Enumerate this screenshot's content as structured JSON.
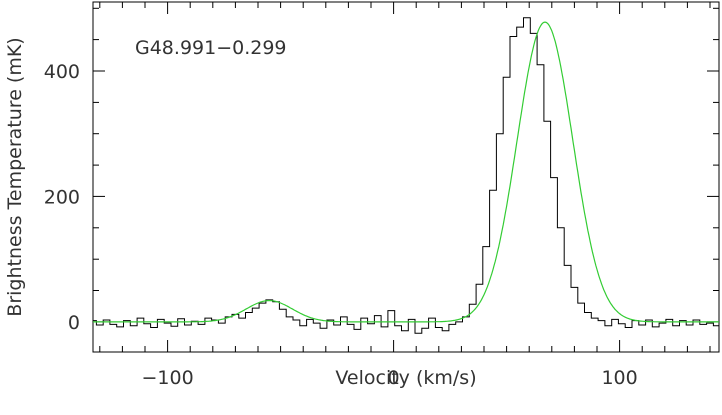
{
  "chart_data": {
    "type": "line",
    "annotation": "G48.991−0.299",
    "xlabel": "Velocity (km/s)",
    "ylabel": "Brightness Temperature (mK)",
    "xlim": [
      -133,
      144
    ],
    "ylim": [
      -48,
      510
    ],
    "x_ticks": [
      -100,
      0,
      100
    ],
    "x_tick_labels": [
      "−100",
      "0",
      "100"
    ],
    "y_ticks": [
      0,
      200,
      400
    ],
    "y_tick_labels": [
      "0",
      "200",
      "400"
    ],
    "grid": false,
    "series": [
      {
        "style": "histogram",
        "color": "#000000",
        "x": [
          -133,
          -130,
          -127,
          -124,
          -121,
          -118,
          -115,
          -112,
          -109,
          -106,
          -103,
          -100,
          -97,
          -94,
          -91,
          -88,
          -85,
          -82,
          -79,
          -76,
          -73,
          -70,
          -67,
          -64,
          -61,
          -58,
          -55,
          -52,
          -49,
          -46,
          -43,
          -40,
          -37,
          -34,
          -31,
          -28,
          -25,
          -22,
          -19,
          -16,
          -13,
          -10,
          -7,
          -4,
          -1,
          2,
          5,
          8,
          11,
          14,
          17,
          20,
          23,
          26,
          29,
          32,
          35,
          38,
          41,
          44,
          47,
          50,
          53,
          56,
          59,
          62,
          65,
          68,
          71,
          74,
          77,
          80,
          83,
          86,
          89,
          92,
          95,
          98,
          101,
          104,
          107,
          110,
          113,
          116,
          119,
          122,
          125,
          128,
          131,
          134,
          137,
          140,
          143
        ],
        "y": [
          2,
          -5,
          3,
          -4,
          -8,
          2,
          -6,
          6,
          -3,
          -9,
          4,
          -2,
          -7,
          5,
          -5,
          1,
          -4,
          6,
          3,
          -2,
          8,
          12,
          6,
          15,
          22,
          30,
          35,
          32,
          20,
          8,
          3,
          -6,
          4,
          -2,
          -10,
          3,
          -5,
          8,
          -4,
          -12,
          6,
          -3,
          10,
          -8,
          18,
          -6,
          -14,
          4,
          -18,
          -10,
          6,
          -9,
          -14,
          -4,
          0,
          8,
          28,
          60,
          120,
          210,
          300,
          390,
          455,
          470,
          485,
          460,
          410,
          320,
          230,
          150,
          90,
          55,
          30,
          15,
          6,
          2,
          -6,
          4,
          -3,
          -9,
          2,
          -5,
          3,
          -8,
          -2,
          4,
          -6,
          2,
          -5,
          3,
          -4,
          -2,
          -6
        ]
      },
      {
        "style": "smooth",
        "color": "#33cc33",
        "components": [
          {
            "amplitude": 34,
            "center": -55,
            "fwhm": 24
          },
          {
            "amplitude": 478,
            "center": 67,
            "fwhm": 29
          }
        ]
      }
    ]
  }
}
